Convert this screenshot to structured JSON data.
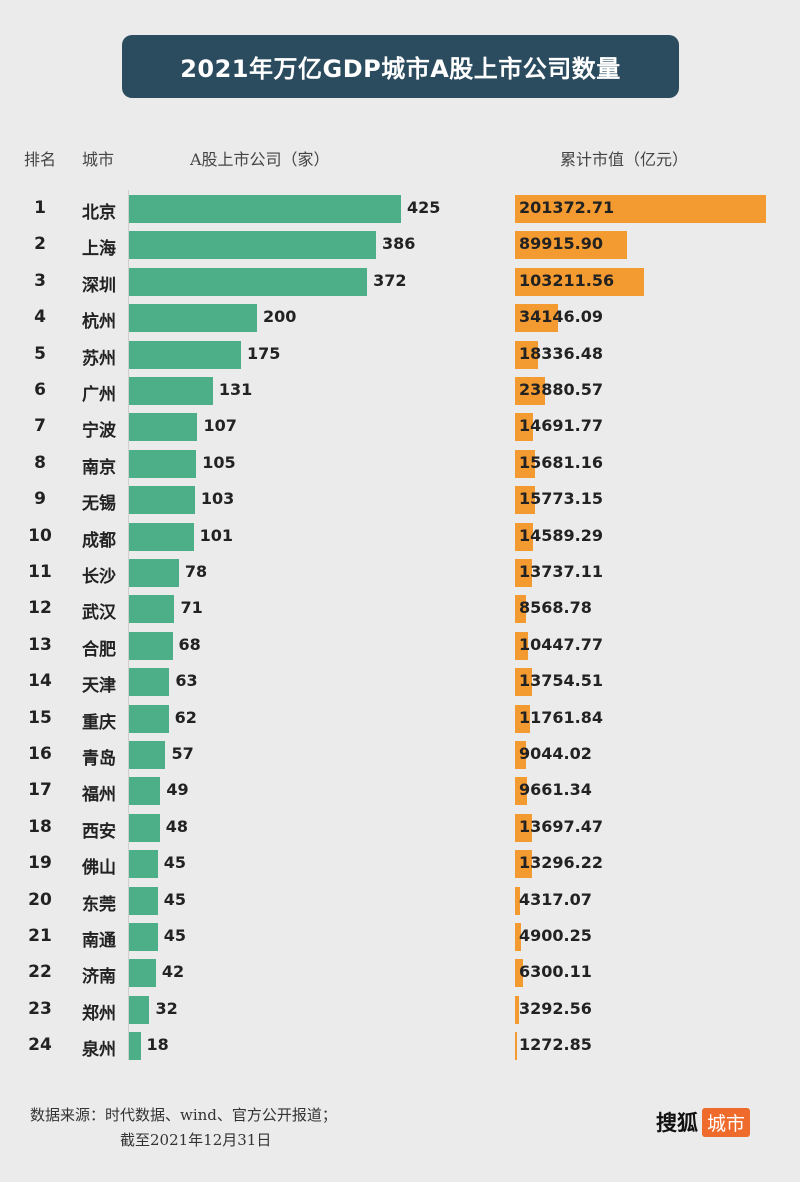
{
  "chart_data": {
    "type": "bar",
    "title": "2021年万亿GDP城市A股上市公司数量",
    "columns": {
      "rank": "排名",
      "city": "城市",
      "companies": "A股上市公司（家）",
      "market_cap": "累计市值（亿元）"
    },
    "ranks": [
      1,
      2,
      3,
      4,
      5,
      6,
      7,
      8,
      9,
      10,
      11,
      12,
      13,
      14,
      15,
      16,
      17,
      18,
      19,
      20,
      21,
      22,
      23,
      24
    ],
    "categories": [
      "北京",
      "上海",
      "深圳",
      "杭州",
      "苏州",
      "广州",
      "宁波",
      "南京",
      "无锡",
      "成都",
      "长沙",
      "武汉",
      "合肥",
      "天津",
      "重庆",
      "青岛",
      "福州",
      "西安",
      "佛山",
      "东莞",
      "南通",
      "济南",
      "郑州",
      "泉州"
    ],
    "series": [
      {
        "name": "A股上市公司（家）",
        "color": "#4daf87",
        "values": [
          425,
          386,
          372,
          200,
          175,
          131,
          107,
          105,
          103,
          101,
          78,
          71,
          68,
          63,
          62,
          57,
          49,
          48,
          45,
          45,
          45,
          42,
          32,
          18
        ]
      },
      {
        "name": "累计市值（亿元）",
        "color": "#f39a30",
        "values": [
          "201372.71",
          "89915.90",
          "103211.56",
          "34146.09",
          "18336.48",
          "23880.57",
          "14691.77",
          "15681.16",
          "15773.15",
          "14589.29",
          "13737.11",
          "8568.78",
          "10447.77",
          "13754.51",
          "11761.84",
          "9044.02",
          "9661.34",
          "13697.47",
          "13296.22",
          "4317.07",
          "4900.25",
          "6300.11",
          "3292.56",
          "1272.85"
        ]
      }
    ],
    "orientation": "horizontal"
  },
  "footer": {
    "source": "数据来源：时代数据、wind、官方公开报道；",
    "date": "截至2021年12月31日",
    "logo_text": "搜狐",
    "logo_badge": "城市"
  }
}
